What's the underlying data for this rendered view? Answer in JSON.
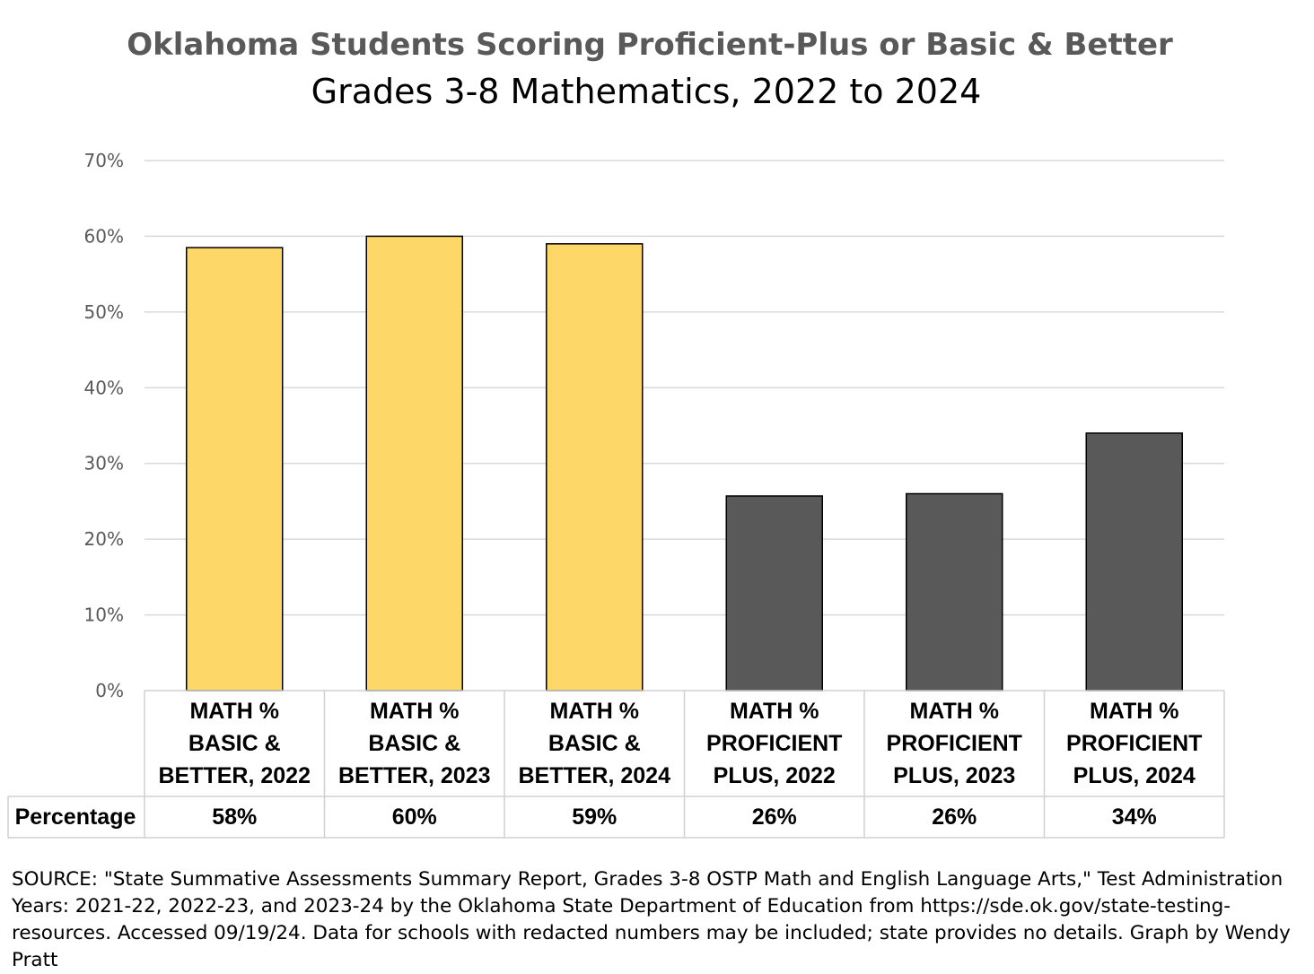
{
  "chart_data": {
    "type": "bar",
    "title": "Oklahoma Students Scoring Proficient-Plus or Basic & Better",
    "subtitle": "Grades 3-8 Mathematics, 2022 to 2024",
    "categories": [
      [
        "MATH %",
        "BASIC &",
        "BETTER, 2022"
      ],
      [
        "MATH %",
        "BASIC &",
        "BETTER, 2023"
      ],
      [
        "MATH %",
        "BASIC &",
        "BETTER, 2024"
      ],
      [
        "MATH %",
        "PROFICIENT",
        "PLUS, 2022"
      ],
      [
        "MATH %",
        "PROFICIENT",
        "PLUS, 2023"
      ],
      [
        "MATH %",
        "PROFICIENT",
        "PLUS, 2024"
      ]
    ],
    "series": [
      {
        "name": "Percentage",
        "values": [
          58.5,
          60.0,
          59.0,
          25.7,
          26.0,
          34.0
        ]
      }
    ],
    "bar_colors": [
      "#FDD868",
      "#FDD868",
      "#FDD868",
      "#595959",
      "#595959",
      "#595959"
    ],
    "ylim": [
      0,
      70
    ],
    "yticks": [
      0,
      10,
      20,
      30,
      40,
      50,
      60,
      70
    ],
    "ytick_labels": [
      "0%",
      "10%",
      "20%",
      "30%",
      "40%",
      "50%",
      "60%",
      "70%"
    ],
    "grid": true,
    "data_table": {
      "row_label": "Percentage",
      "values": [
        "58%",
        "60%",
        "59%",
        "26%",
        "26%",
        "34%"
      ]
    }
  },
  "source": "SOURCE: \"State Summative Assessments Summary Report, Grades 3-8 OSTP Math and English Language Arts,\" Test Administration Years: 2021-22, 2022-23, and 2023-24 by the Oklahoma State Department of Education from https://sde.ok.gov/state-testing-resources. Accessed 09/19/24. Data for schools with redacted numbers may be included; state provides no details. Graph by Wendy Pratt"
}
